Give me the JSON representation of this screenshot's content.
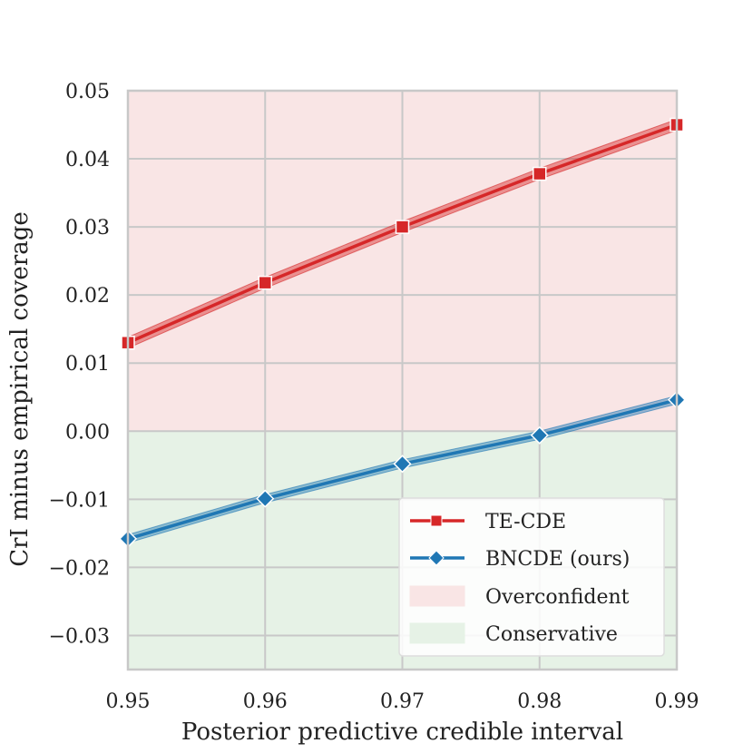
{
  "chart_data": {
    "type": "line",
    "title": "",
    "xlabel": "Posterior predictive credible interval",
    "ylabel": "CrI minus empirical coverage",
    "x": [
      0.95,
      0.96,
      0.97,
      0.98,
      0.99
    ],
    "x_tick_labels": [
      "0.95",
      "0.96",
      "0.97",
      "0.98",
      "0.99"
    ],
    "y_ticks": [
      -0.03,
      -0.02,
      -0.01,
      0.0,
      0.01,
      0.02,
      0.03,
      0.04,
      0.05
    ],
    "y_tick_labels": [
      "−0.03",
      "−0.02",
      "−0.01",
      "0.00",
      "0.01",
      "0.02",
      "0.03",
      "0.04",
      "0.05"
    ],
    "xlim": [
      0.95,
      0.99
    ],
    "ylim": [
      -0.035,
      0.05
    ],
    "grid": true,
    "legend_position": "lower-right",
    "series": [
      {
        "name": "TE-CDE",
        "values": [
          0.013,
          0.0218,
          0.03,
          0.0378,
          0.045
        ],
        "band_halfwidth": 0.0008,
        "color": "#d62728",
        "marker": "square"
      },
      {
        "name": "BNCDE (ours)",
        "values": [
          -0.0158,
          -0.0099,
          -0.0048,
          -0.0006,
          0.0046
        ],
        "band_halfwidth": 0.0006,
        "color": "#1f77b4",
        "marker": "diamond"
      }
    ],
    "regions": [
      {
        "name": "Overconfident",
        "y_range": [
          0.0,
          0.05
        ],
        "color": "#f9e5e5"
      },
      {
        "name": "Conservative",
        "y_range": [
          -0.035,
          0.0
        ],
        "color": "#e6f2e6"
      }
    ]
  }
}
